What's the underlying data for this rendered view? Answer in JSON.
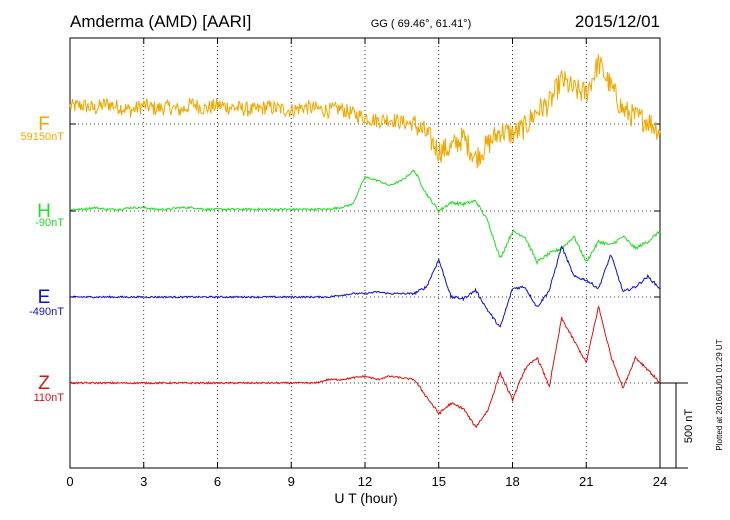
{
  "header": {
    "station": "Amderma (AMD)  [AARI]",
    "coords": "GG ( 69.46°,  61.41°)",
    "date": "2015/12/01"
  },
  "footer": {
    "xlabel": "U T (hour)",
    "plotted": "Plotted at 2016/01/01 01:29 UT",
    "scale_label": "500 nT"
  },
  "colors": {
    "F": "#f0a800",
    "H": "#22dd22",
    "E": "#1010cc",
    "Z": "#dd1111"
  },
  "chart_data": {
    "type": "line",
    "x_range": [
      0,
      24
    ],
    "x_ticks": [
      0,
      3,
      6,
      9,
      12,
      15,
      18,
      21,
      24
    ],
    "xlabel": "U T (hour)",
    "scale_bar_nT": 500,
    "grid": true,
    "series": [
      {
        "name": "F",
        "baseline_label": "59150nT",
        "baseline_nT": 59150,
        "color": "#f0a800",
        "x": [
          0,
          0.5,
          1,
          1.5,
          2,
          2.5,
          3,
          3.5,
          4,
          4.5,
          5,
          5.5,
          6,
          6.5,
          7,
          7.5,
          8,
          8.5,
          9,
          9.5,
          10,
          10.5,
          11,
          11.5,
          12,
          12.5,
          13,
          13.5,
          14,
          14.5,
          15,
          15.5,
          16,
          16.5,
          17,
          17.5,
          18,
          18.5,
          19,
          19.5,
          20,
          20.5,
          21,
          21.5,
          22,
          22.5,
          23,
          23.5,
          24
        ],
        "y": [
          100,
          110,
          90,
          120,
          100,
          80,
          110,
          90,
          100,
          80,
          120,
          90,
          110,
          100,
          90,
          80,
          100,
          90,
          80,
          100,
          90,
          80,
          90,
          60,
          40,
          20,
          30,
          10,
          0,
          -60,
          -160,
          -140,
          -80,
          -200,
          -120,
          -40,
          -60,
          -20,
          80,
          120,
          260,
          200,
          180,
          360,
          220,
          80,
          40,
          20,
          -40
        ],
        "noise": 90
      },
      {
        "name": "H",
        "baseline_label": "-90nT",
        "baseline_nT": -90,
        "color": "#22dd22",
        "x": [
          0,
          0.5,
          1,
          1.5,
          2,
          2.5,
          3,
          3.5,
          4,
          4.5,
          5,
          5.5,
          6,
          6.5,
          7,
          7.5,
          8,
          8.5,
          9,
          9.5,
          10,
          10.5,
          11,
          11.5,
          12,
          12.5,
          13,
          13.5,
          14,
          14.5,
          15,
          15.5,
          16,
          16.5,
          17,
          17.5,
          18,
          18.5,
          19,
          19.5,
          20,
          20.5,
          21,
          21.5,
          22,
          22.5,
          23,
          23.5,
          24
        ],
        "y": [
          10,
          10,
          20,
          10,
          10,
          20,
          20,
          10,
          10,
          20,
          20,
          10,
          10,
          10,
          10,
          10,
          10,
          10,
          10,
          10,
          10,
          10,
          20,
          40,
          200,
          180,
          150,
          180,
          240,
          100,
          0,
          50,
          40,
          60,
          -60,
          -280,
          -120,
          -150,
          -300,
          -250,
          -220,
          -150,
          -300,
          -180,
          -200,
          -150,
          -220,
          -180,
          -120
        ],
        "noise": 12
      },
      {
        "name": "E",
        "baseline_label": "-490nT",
        "baseline_nT": -490,
        "color": "#1010cc",
        "x": [
          0,
          0.5,
          1,
          1.5,
          2,
          2.5,
          3,
          3.5,
          4,
          4.5,
          5,
          5.5,
          6,
          6.5,
          7,
          7.5,
          8,
          8.5,
          9,
          9.5,
          10,
          10.5,
          11,
          11.5,
          12,
          12.5,
          13,
          13.5,
          14,
          14.5,
          15,
          15.5,
          16,
          16.5,
          17,
          17.5,
          18,
          18.5,
          19,
          19.5,
          20,
          20.5,
          21,
          21.5,
          22,
          22.5,
          23,
          23.5,
          24
        ],
        "y": [
          0,
          0,
          0,
          0,
          0,
          0,
          0,
          0,
          0,
          0,
          0,
          0,
          0,
          0,
          0,
          0,
          0,
          0,
          0,
          0,
          0,
          0,
          10,
          20,
          20,
          30,
          20,
          20,
          20,
          60,
          220,
          0,
          -10,
          40,
          -80,
          -180,
          50,
          60,
          -60,
          40,
          300,
          120,
          100,
          50,
          250,
          30,
          60,
          120,
          50
        ],
        "noise": 10
      },
      {
        "name": "Z",
        "baseline_label": "110nT",
        "baseline_nT": 110,
        "color": "#dd1111",
        "x": [
          0,
          0.5,
          1,
          1.5,
          2,
          2.5,
          3,
          3.5,
          4,
          4.5,
          5,
          5.5,
          6,
          6.5,
          7,
          7.5,
          8,
          8.5,
          9,
          9.5,
          10,
          10.5,
          11,
          11.5,
          12,
          12.5,
          13,
          13.5,
          14,
          14.5,
          15,
          15.5,
          16,
          16.5,
          17,
          17.5,
          18,
          18.5,
          19,
          19.5,
          20,
          20.5,
          21,
          21.5,
          22,
          22.5,
          23,
          23.5,
          24
        ],
        "y": [
          0,
          0,
          0,
          0,
          0,
          0,
          0,
          0,
          0,
          0,
          0,
          0,
          0,
          0,
          0,
          0,
          0,
          0,
          0,
          0,
          0,
          20,
          20,
          30,
          40,
          20,
          40,
          30,
          20,
          -80,
          -180,
          -120,
          -150,
          -260,
          -160,
          60,
          -100,
          80,
          150,
          -20,
          380,
          250,
          120,
          450,
          160,
          -30,
          150,
          80,
          0
        ],
        "noise": 10
      }
    ]
  }
}
